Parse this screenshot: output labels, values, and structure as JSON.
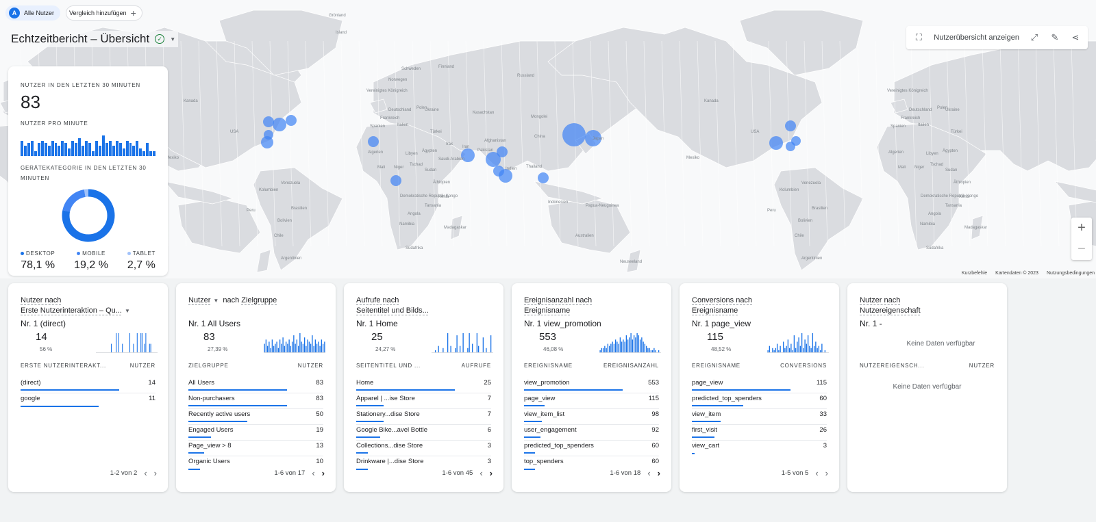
{
  "topbar": {
    "avatar": "A",
    "segment": "Alle Nutzer",
    "compare": "Vergleich hinzufügen"
  },
  "title": "Echtzeitbericht – Übersicht",
  "tools": {
    "user_overview": "Nutzerübersicht anzeigen"
  },
  "map": {
    "labels": [
      [
        "Grönland"
      ],
      [
        "Island"
      ],
      [
        "Schweden"
      ],
      [
        "Finnland"
      ],
      [
        "Norwegen"
      ],
      [
        "Russland"
      ],
      [
        "Vereinigtes Königreich"
      ],
      [
        "Deutschland"
      ],
      [
        "Polen"
      ],
      [
        "Ukraine"
      ],
      [
        "Frankreich"
      ],
      [
        "Kasachstan"
      ],
      [
        "Spanien"
      ],
      [
        "Italien"
      ],
      [
        "Türkei"
      ],
      [
        "Mongolei"
      ],
      [
        "Algerien"
      ],
      [
        "Libyen"
      ],
      [
        "Ägypten"
      ],
      [
        "Irak"
      ],
      [
        "Iran"
      ],
      [
        "Afghanistan"
      ],
      [
        "Pakistan"
      ],
      [
        "China"
      ],
      [
        "Japan"
      ],
      [
        "Saudi-Arabien"
      ],
      [
        "Indien"
      ],
      [
        "Thailand"
      ],
      [
        "Mali"
      ],
      [
        "Niger"
      ],
      [
        "Tschad"
      ],
      [
        "Sudan"
      ],
      [
        "Äthiopien"
      ],
      [
        "Demokratische Republik Kongo"
      ],
      [
        "Kenia"
      ],
      [
        "Tansania"
      ],
      [
        "Angola"
      ],
      [
        "Namibia"
      ],
      [
        "Madagaskar"
      ],
      [
        "Südafrika"
      ],
      [
        "Indonesien"
      ],
      [
        "Papua-Neuguinea"
      ],
      [
        "Australien"
      ],
      [
        "Neuseeland"
      ],
      [
        "USA"
      ],
      [
        "Kanada"
      ],
      [
        "Mexiko"
      ],
      [
        "Venezuela"
      ],
      [
        "Kolumbien"
      ],
      [
        "Peru"
      ],
      [
        "Brasilien"
      ],
      [
        "Bolivien"
      ],
      [
        "Chile"
      ],
      [
        "Argentinien"
      ]
    ],
    "attribution": [
      "Kurzbefehle",
      "Kartendaten © 2023",
      "Nutzungsbedingungen"
    ]
  },
  "realtime": {
    "users_label": "NUTZER IN DEN LETZTEN 30 MINUTEN",
    "users": "83",
    "per_minute_label": "NUTZER PRO MINUTE",
    "per_minute": [
      6,
      4,
      5,
      6,
      2,
      5,
      6,
      5,
      4,
      6,
      5,
      4,
      6,
      5,
      3,
      6,
      5,
      7,
      4,
      6,
      5,
      2,
      6,
      4,
      8,
      5,
      6,
      4,
      6,
      5,
      3,
      6,
      5,
      4,
      6,
      3,
      2,
      5,
      2,
      2
    ],
    "device_label": "GERÄTEKATEGORIE IN DEN LETZTEN 30 MINUTEN",
    "devices": [
      {
        "name": "DESKTOP",
        "value": "78,1 %",
        "share": 78.1,
        "color": "#1a73e8"
      },
      {
        "name": "MOBILE",
        "value": "19,2 %",
        "share": 19.2,
        "color": "#4285f4"
      },
      {
        "name": "TABLET",
        "value": "2,7 %",
        "share": 2.7,
        "color": "#a1c2fa"
      }
    ]
  },
  "cards": [
    {
      "h1a": "Nutzer nach",
      "h1b": "",
      "h2": "Erste Nutzerinteraktion – Qu...",
      "h2dd": true,
      "top": "Nr. 1  (direct)",
      "kpi": "14",
      "pct": "56 %",
      "spark": [
        0,
        0,
        0,
        0,
        0,
        0,
        0,
        0,
        0,
        0,
        0,
        0,
        4,
        0,
        0,
        0,
        9,
        0,
        9,
        0,
        0,
        4,
        0,
        0,
        0,
        0,
        0,
        9,
        0,
        0,
        4,
        0,
        0,
        9,
        0,
        0,
        9,
        9,
        0,
        4,
        9,
        0,
        0,
        4,
        4,
        0,
        0,
        0,
        0,
        0
      ],
      "col1": "ERSTE NUTZERINTERAKT...",
      "col2": "NUTZER",
      "rows": [
        {
          "label": "(direct)",
          "value": "14",
          "share": 1.0
        },
        {
          "label": "google",
          "value": "11",
          "share": 0.79
        }
      ],
      "pager": "1-2 von 2",
      "next": false
    },
    {
      "h1a": "Nutzer",
      "h1b": "nach Zielgruppe",
      "h2": "",
      "h2dd": false,
      "top": "Nr. 1  All Users",
      "kpi": "83",
      "pct": "27,39 %",
      "spark": [
        4,
        6,
        3,
        5,
        2,
        6,
        3,
        4,
        5,
        2,
        6,
        4,
        7,
        3,
        5,
        4,
        6,
        3,
        5,
        8,
        4,
        6,
        3,
        9,
        5,
        4,
        7,
        3,
        6,
        5,
        4,
        8,
        3,
        6,
        4,
        5,
        3,
        6,
        4,
        5
      ],
      "col1": "ZIELGRUPPE",
      "col2": "NUTZER",
      "rows": [
        {
          "label": "All Users",
          "value": "83",
          "share": 1.0
        },
        {
          "label": "Non-purchasers",
          "value": "83",
          "share": 1.0
        },
        {
          "label": "Recently active users",
          "value": "50",
          "share": 0.6
        },
        {
          "label": "Engaged Users",
          "value": "19",
          "share": 0.23
        },
        {
          "label": "Page_view > 8",
          "value": "13",
          "share": 0.16
        },
        {
          "label": "Organic Users",
          "value": "10",
          "share": 0.12
        }
      ],
      "pager": "1-6 von 17",
      "next": true
    },
    {
      "h1a": "Aufrufe nach",
      "h1b": "",
      "h2": "Seitentitel und Bilds...",
      "h2dd": false,
      "top": "Nr. 1  Home",
      "kpi": "25",
      "pct": "24,27 %",
      "spark": [
        0,
        0,
        1,
        0,
        3,
        0,
        0,
        2,
        0,
        0,
        9,
        0,
        3,
        0,
        0,
        2,
        8,
        0,
        3,
        0,
        9,
        0,
        0,
        2,
        9,
        0,
        4,
        0,
        0,
        9,
        3,
        0,
        0,
        7,
        0,
        2,
        0,
        0,
        8,
        0
      ],
      "col1": "SEITENTITEL UND ...",
      "col2": "AUFRUFE",
      "rows": [
        {
          "label": "Home",
          "value": "25",
          "share": 1.0
        },
        {
          "label": "Apparel | ...ise Store",
          "value": "7",
          "share": 0.28
        },
        {
          "label": "Stationery...dise Store",
          "value": "7",
          "share": 0.28
        },
        {
          "label": "Google Bike...avel Bottle",
          "value": "6",
          "share": 0.24
        },
        {
          "label": "Collections...dise Store",
          "value": "3",
          "share": 0.12
        },
        {
          "label": "Drinkware |...dise Store",
          "value": "3",
          "share": 0.12
        }
      ],
      "pager": "1-6 von 45",
      "next": true
    },
    {
      "h1a": "Ereignisanzahl nach",
      "h1b": "",
      "h2": "Ereignisname",
      "h2dd": false,
      "top": "Nr. 1  view_promotion",
      "kpi": "553",
      "pct": "46,08 %",
      "spark": [
        1,
        2,
        2,
        3,
        2,
        4,
        3,
        4,
        5,
        4,
        6,
        5,
        4,
        7,
        5,
        6,
        5,
        8,
        6,
        7,
        9,
        6,
        8,
        7,
        9,
        8,
        6,
        7,
        5,
        4,
        3,
        2,
        2,
        1,
        1,
        2,
        1,
        0,
        1,
        0
      ],
      "col1": "EREIGNISNAME",
      "col2": "EREIGNISANZAHL",
      "rows": [
        {
          "label": "view_promotion",
          "value": "553",
          "share": 1.0
        },
        {
          "label": "page_view",
          "value": "115",
          "share": 0.21
        },
        {
          "label": "view_item_list",
          "value": "98",
          "share": 0.18
        },
        {
          "label": "user_engagement",
          "value": "92",
          "share": 0.17
        },
        {
          "label": "predicted_top_spenders",
          "value": "60",
          "share": 0.11
        },
        {
          "label": "top_spenders",
          "value": "60",
          "share": 0.11
        }
      ],
      "pager": "1-6 von 18",
      "next": true
    },
    {
      "h1a": "Conversions nach",
      "h1b": "",
      "h2": "Ereignisname",
      "h2dd": false,
      "top": "Nr. 1  page_view",
      "kpi": "115",
      "pct": "48,52 %",
      "spark": [
        1,
        3,
        0,
        2,
        1,
        2,
        4,
        1,
        3,
        0,
        5,
        2,
        3,
        6,
        2,
        4,
        1,
        8,
        2,
        5,
        7,
        3,
        9,
        2,
        6,
        4,
        8,
        3,
        2,
        9,
        3,
        5,
        2,
        3,
        1,
        4,
        0,
        1,
        0,
        0
      ],
      "col1": "EREIGNISNAME",
      "col2": "CONVERSIONS",
      "rows": [
        {
          "label": "page_view",
          "value": "115",
          "share": 1.0
        },
        {
          "label": "predicted_top_spenders",
          "value": "60",
          "share": 0.52
        },
        {
          "label": "view_item",
          "value": "33",
          "share": 0.29
        },
        {
          "label": "first_visit",
          "value": "26",
          "share": 0.23
        },
        {
          "label": "view_cart",
          "value": "3",
          "share": 0.03
        }
      ],
      "pager": "1-5 von 5",
      "next": false
    },
    {
      "h1a": "Nutzer nach",
      "h1b": "",
      "h2": "Nutzereigenschaft",
      "h2dd": false,
      "top": "Nr. 1  -",
      "nodata": "Keine Daten verfügbar",
      "col1": "NUTZEREIGENSCH...",
      "col2": "NUTZER",
      "rows_nodata": "Keine Daten verfügbar"
    }
  ]
}
